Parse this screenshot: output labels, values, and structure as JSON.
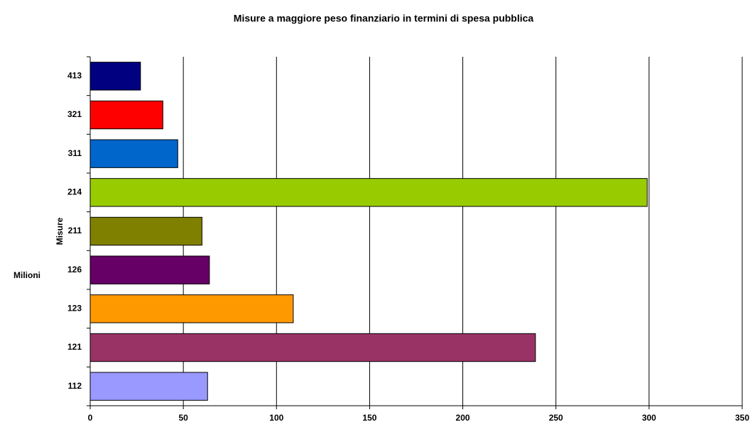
{
  "chart_data": {
    "type": "bar",
    "orientation": "horizontal",
    "title": "Misure a maggiore peso finanziario in termini di spesa pubblica",
    "y_label": "Misure",
    "x_label": "Milioni",
    "categories": [
      "112",
      "121",
      "123",
      "126",
      "211",
      "214",
      "311",
      "321",
      "413"
    ],
    "values": [
      63,
      239,
      109,
      64,
      60,
      299,
      47,
      39,
      27
    ],
    "colors": [
      "#9999ff",
      "#993366",
      "#ff9900",
      "#660066",
      "#808000",
      "#99cc00",
      "#0066cc",
      "#ff0000",
      "#000080"
    ],
    "xlim": [
      0,
      350
    ],
    "xticks": [
      0,
      50,
      100,
      150,
      200,
      250,
      300,
      350
    ],
    "grid": true
  }
}
